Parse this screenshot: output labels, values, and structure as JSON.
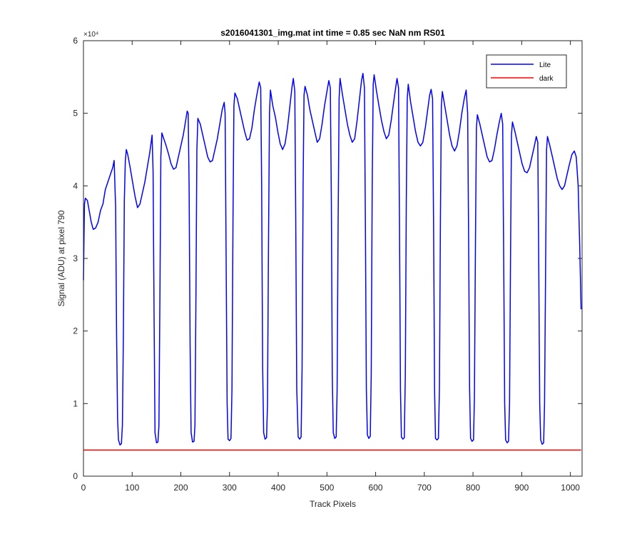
{
  "chart_data": {
    "type": "line",
    "title": "s2016041301_img.mat int time = 0.85 sec  NaN nm RS01",
    "xlabel": "Track Pixels",
    "ylabel": "Signal (ADU) at pixel 790",
    "y_exponent_label": "×10⁴",
    "xlim": [
      0,
      1024
    ],
    "ylim": [
      0,
      60000
    ],
    "xticks": [
      0,
      100,
      200,
      300,
      400,
      500,
      600,
      700,
      800,
      900,
      1000
    ],
    "yticks": [
      0,
      10000,
      20000,
      30000,
      40000,
      50000,
      60000
    ],
    "ytick_labels": [
      "0",
      "1",
      "2",
      "3",
      "4",
      "5",
      "6"
    ],
    "grid": false,
    "legend_position": "top-right",
    "series": [
      {
        "name": "Lite",
        "color": "#0000ff",
        "points": [
          [
            0,
            27000
          ],
          [
            2,
            37500
          ],
          [
            4,
            38300
          ],
          [
            8,
            38000
          ],
          [
            12,
            36500
          ],
          [
            16,
            35000
          ],
          [
            20,
            34000
          ],
          [
            25,
            34200
          ],
          [
            30,
            35000
          ],
          [
            35,
            36600
          ],
          [
            40,
            37500
          ],
          [
            45,
            39500
          ],
          [
            50,
            40500
          ],
          [
            55,
            41500
          ],
          [
            60,
            42500
          ],
          [
            63,
            43500
          ],
          [
            66,
            37000
          ],
          [
            68,
            20000
          ],
          [
            70,
            8000
          ],
          [
            72,
            5000
          ],
          [
            75,
            4300
          ],
          [
            78,
            4500
          ],
          [
            80,
            7000
          ],
          [
            82,
            20000
          ],
          [
            84,
            38000
          ],
          [
            86,
            43500
          ],
          [
            88,
            45000
          ],
          [
            91,
            44300
          ],
          [
            96,
            42500
          ],
          [
            101,
            40500
          ],
          [
            106,
            38500
          ],
          [
            111,
            37000
          ],
          [
            116,
            37500
          ],
          [
            121,
            39000
          ],
          [
            126,
            40500
          ],
          [
            131,
            42500
          ],
          [
            136,
            44500
          ],
          [
            139,
            46000
          ],
          [
            141,
            47000
          ],
          [
            143,
            42000
          ],
          [
            145,
            22000
          ],
          [
            147,
            6000
          ],
          [
            150,
            4600
          ],
          [
            153,
            4700
          ],
          [
            155,
            7000
          ],
          [
            157,
            25000
          ],
          [
            159,
            44000
          ],
          [
            161,
            47300
          ],
          [
            165,
            46500
          ],
          [
            170,
            45500
          ],
          [
            175,
            44300
          ],
          [
            180,
            43000
          ],
          [
            185,
            42300
          ],
          [
            190,
            42500
          ],
          [
            195,
            44000
          ],
          [
            200,
            45500
          ],
          [
            205,
            47000
          ],
          [
            210,
            49000
          ],
          [
            213,
            50300
          ],
          [
            215,
            50000
          ],
          [
            217,
            40000
          ],
          [
            219,
            18000
          ],
          [
            221,
            6000
          ],
          [
            224,
            4700
          ],
          [
            227,
            4800
          ],
          [
            229,
            7000
          ],
          [
            231,
            25000
          ],
          [
            233,
            45000
          ],
          [
            235,
            49300
          ],
          [
            240,
            48500
          ],
          [
            245,
            47000
          ],
          [
            250,
            45500
          ],
          [
            255,
            44000
          ],
          [
            260,
            43300
          ],
          [
            265,
            43500
          ],
          [
            270,
            45000
          ],
          [
            275,
            46500
          ],
          [
            280,
            48500
          ],
          [
            285,
            50500
          ],
          [
            289,
            51500
          ],
          [
            291,
            50000
          ],
          [
            293,
            30000
          ],
          [
            295,
            10000
          ],
          [
            297,
            5100
          ],
          [
            300,
            4900
          ],
          [
            303,
            5200
          ],
          [
            305,
            12000
          ],
          [
            307,
            35000
          ],
          [
            309,
            51000
          ],
          [
            311,
            52800
          ],
          [
            316,
            52000
          ],
          [
            321,
            50500
          ],
          [
            326,
            49000
          ],
          [
            331,
            47500
          ],
          [
            336,
            46300
          ],
          [
            341,
            46500
          ],
          [
            346,
            48000
          ],
          [
            351,
            50500
          ],
          [
            356,
            52500
          ],
          [
            361,
            54300
          ],
          [
            364,
            53500
          ],
          [
            366,
            40000
          ],
          [
            368,
            15000
          ],
          [
            370,
            6000
          ],
          [
            373,
            5100
          ],
          [
            376,
            5300
          ],
          [
            378,
            10000
          ],
          [
            380,
            32000
          ],
          [
            382,
            50000
          ],
          [
            384,
            53200
          ],
          [
            389,
            51000
          ],
          [
            394,
            49500
          ],
          [
            399,
            47500
          ],
          [
            404,
            45800
          ],
          [
            409,
            45000
          ],
          [
            414,
            45800
          ],
          [
            419,
            48000
          ],
          [
            424,
            51000
          ],
          [
            428,
            53500
          ],
          [
            431,
            54800
          ],
          [
            434,
            53000
          ],
          [
            436,
            35000
          ],
          [
            438,
            12000
          ],
          [
            441,
            5400
          ],
          [
            444,
            5100
          ],
          [
            447,
            5400
          ],
          [
            449,
            15000
          ],
          [
            451,
            40000
          ],
          [
            453,
            52500
          ],
          [
            455,
            53700
          ],
          [
            460,
            52500
          ],
          [
            465,
            50500
          ],
          [
            470,
            49000
          ],
          [
            475,
            47500
          ],
          [
            480,
            46000
          ],
          [
            485,
            46500
          ],
          [
            490,
            48500
          ],
          [
            495,
            51000
          ],
          [
            500,
            53000
          ],
          [
            504,
            54500
          ],
          [
            507,
            53500
          ],
          [
            509,
            38000
          ],
          [
            511,
            14000
          ],
          [
            513,
            6000
          ],
          [
            516,
            5200
          ],
          [
            519,
            5400
          ],
          [
            521,
            12000
          ],
          [
            523,
            35000
          ],
          [
            525,
            52000
          ],
          [
            527,
            54800
          ],
          [
            532,
            52500
          ],
          [
            537,
            50500
          ],
          [
            542,
            48500
          ],
          [
            547,
            47000
          ],
          [
            552,
            46000
          ],
          [
            557,
            46500
          ],
          [
            562,
            49000
          ],
          [
            567,
            52000
          ],
          [
            571,
            54500
          ],
          [
            574,
            55500
          ],
          [
            577,
            53500
          ],
          [
            579,
            35000
          ],
          [
            581,
            12000
          ],
          [
            583,
            5700
          ],
          [
            586,
            5200
          ],
          [
            589,
            5500
          ],
          [
            591,
            14000
          ],
          [
            593,
            40000
          ],
          [
            595,
            54000
          ],
          [
            597,
            55300
          ],
          [
            602,
            53000
          ],
          [
            607,
            51000
          ],
          [
            612,
            49000
          ],
          [
            617,
            47500
          ],
          [
            622,
            46500
          ],
          [
            627,
            47000
          ],
          [
            632,
            49000
          ],
          [
            637,
            51500
          ],
          [
            641,
            53500
          ],
          [
            644,
            54800
          ],
          [
            647,
            53500
          ],
          [
            649,
            35000
          ],
          [
            651,
            12000
          ],
          [
            653,
            5400
          ],
          [
            656,
            5100
          ],
          [
            659,
            5300
          ],
          [
            661,
            14000
          ],
          [
            663,
            38000
          ],
          [
            665,
            52000
          ],
          [
            667,
            54000
          ],
          [
            672,
            51500
          ],
          [
            677,
            49500
          ],
          [
            682,
            47500
          ],
          [
            687,
            46000
          ],
          [
            692,
            45500
          ],
          [
            697,
            46000
          ],
          [
            702,
            48000
          ],
          [
            707,
            50500
          ],
          [
            711,
            52500
          ],
          [
            714,
            53300
          ],
          [
            717,
            52000
          ],
          [
            719,
            35000
          ],
          [
            721,
            12000
          ],
          [
            723,
            5200
          ],
          [
            726,
            5000
          ],
          [
            729,
            5200
          ],
          [
            731,
            12000
          ],
          [
            733,
            35000
          ],
          [
            735,
            51000
          ],
          [
            737,
            53000
          ],
          [
            742,
            51000
          ],
          [
            747,
            49000
          ],
          [
            752,
            47000
          ],
          [
            757,
            45500
          ],
          [
            762,
            44800
          ],
          [
            767,
            45500
          ],
          [
            772,
            47500
          ],
          [
            777,
            50000
          ],
          [
            782,
            52000
          ],
          [
            786,
            53200
          ],
          [
            789,
            50000
          ],
          [
            791,
            32000
          ],
          [
            793,
            12000
          ],
          [
            795,
            5200
          ],
          [
            798,
            4800
          ],
          [
            801,
            5000
          ],
          [
            803,
            11000
          ],
          [
            805,
            32000
          ],
          [
            807,
            48000
          ],
          [
            809,
            49800
          ],
          [
            814,
            48500
          ],
          [
            819,
            47000
          ],
          [
            824,
            45500
          ],
          [
            829,
            44000
          ],
          [
            834,
            43300
          ],
          [
            839,
            43500
          ],
          [
            844,
            45000
          ],
          [
            849,
            47000
          ],
          [
            854,
            48800
          ],
          [
            858,
            50000
          ],
          [
            861,
            48500
          ],
          [
            863,
            30000
          ],
          [
            865,
            10000
          ],
          [
            867,
            5000
          ],
          [
            870,
            4600
          ],
          [
            873,
            4800
          ],
          [
            875,
            10000
          ],
          [
            877,
            30000
          ],
          [
            879,
            47000
          ],
          [
            881,
            48800
          ],
          [
            886,
            47500
          ],
          [
            891,
            46000
          ],
          [
            896,
            44500
          ],
          [
            901,
            43000
          ],
          [
            906,
            42000
          ],
          [
            911,
            41800
          ],
          [
            916,
            42500
          ],
          [
            921,
            44000
          ],
          [
            926,
            45500
          ],
          [
            930,
            46800
          ],
          [
            933,
            46000
          ],
          [
            935,
            30000
          ],
          [
            937,
            10000
          ],
          [
            939,
            5000
          ],
          [
            942,
            4400
          ],
          [
            945,
            4600
          ],
          [
            947,
            10000
          ],
          [
            949,
            28000
          ],
          [
            951,
            45000
          ],
          [
            953,
            46800
          ],
          [
            958,
            45500
          ],
          [
            963,
            44000
          ],
          [
            968,
            42500
          ],
          [
            973,
            41000
          ],
          [
            978,
            40000
          ],
          [
            983,
            39500
          ],
          [
            988,
            40000
          ],
          [
            993,
            41500
          ],
          [
            998,
            43000
          ],
          [
            1003,
            44300
          ],
          [
            1008,
            44800
          ],
          [
            1012,
            44000
          ],
          [
            1016,
            40000
          ],
          [
            1019,
            32000
          ],
          [
            1021,
            26000
          ],
          [
            1022,
            23000
          ]
        ]
      },
      {
        "name": "dark",
        "color": "#ff0000",
        "points": [
          [
            0,
            3600
          ],
          [
            1022,
            3600
          ]
        ]
      }
    ]
  }
}
